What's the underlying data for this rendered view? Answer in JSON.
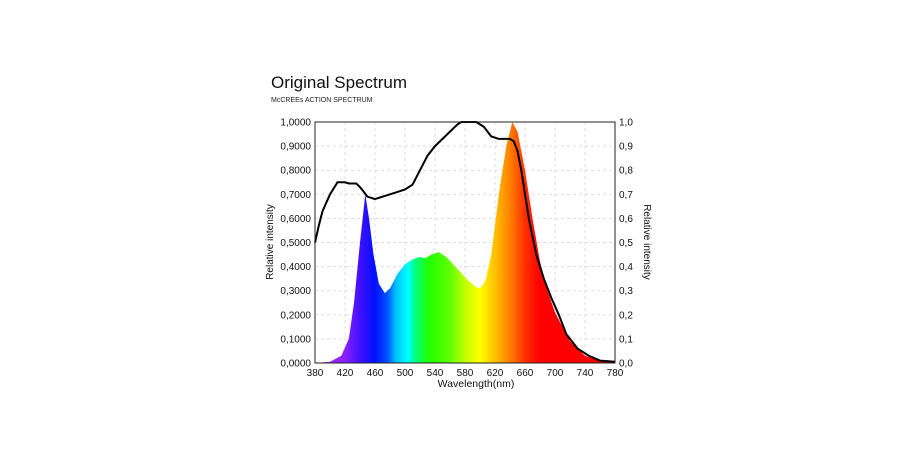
{
  "title": "Original Spectrum",
  "subtitle": "McCREEs ACTION SPECTRUM",
  "chart_data": {
    "type": "area",
    "title": "Original Spectrum",
    "subtitle": "McCREEs ACTION SPECTRUM",
    "xlabel": "Wavelength(nm)",
    "ylabel": "Relative intensity",
    "ylabel_right": "Relative intensity",
    "xlim": [
      380,
      780
    ],
    "ylim": [
      0,
      1
    ],
    "xticks": [
      "380",
      "420",
      "460",
      "500",
      "540",
      "580",
      "620",
      "660",
      "700",
      "740",
      "780"
    ],
    "yticks_left": [
      "0,0000",
      "0,1000",
      "0,2000",
      "0,3000",
      "0,4000",
      "0,5000",
      "0,6000",
      "0,7000",
      "0,8000",
      "0,9000",
      "1,0000"
    ],
    "yticks_right": [
      "0,0",
      "0,1",
      "0,2",
      "0,3",
      "0,4",
      "0,5",
      "0,6",
      "0,7",
      "0,8",
      "0,9",
      "1,0"
    ],
    "grid": true,
    "series": [
      {
        "name": "Spectrum",
        "style": "wavelength-colored fill",
        "x": [
          380,
          400,
          415,
          425,
          432,
          440,
          447,
          452,
          458,
          465,
          473,
          480,
          490,
          500,
          510,
          520,
          527,
          535,
          545,
          555,
          570,
          585,
          595,
          600,
          607,
          615,
          625,
          635,
          643,
          650,
          660,
          670,
          680,
          690,
          700,
          720,
          740,
          760,
          780
        ],
        "y": [
          0,
          0.005,
          0.03,
          0.1,
          0.25,
          0.5,
          0.7,
          0.6,
          0.45,
          0.33,
          0.29,
          0.31,
          0.37,
          0.41,
          0.43,
          0.44,
          0.435,
          0.45,
          0.46,
          0.44,
          0.39,
          0.34,
          0.315,
          0.31,
          0.34,
          0.45,
          0.7,
          0.9,
          1.0,
          0.96,
          0.8,
          0.6,
          0.42,
          0.3,
          0.21,
          0.09,
          0.03,
          0.01,
          0
        ]
      },
      {
        "name": "McCree action spectrum",
        "style": "black line",
        "x": [
          380,
          385,
          390,
          400,
          410,
          420,
          425,
          435,
          440,
          445,
          450,
          460,
          470,
          480,
          490,
          500,
          510,
          520,
          530,
          540,
          550,
          560,
          570,
          575,
          595,
          600,
          605,
          615,
          625,
          640,
          645,
          650,
          655,
          665,
          675,
          685,
          695,
          705,
          715,
          730,
          745,
          760,
          780
        ],
        "y": [
          0.5,
          0.57,
          0.63,
          0.7,
          0.75,
          0.75,
          0.745,
          0.745,
          0.73,
          0.71,
          0.69,
          0.68,
          0.69,
          0.7,
          0.71,
          0.72,
          0.74,
          0.8,
          0.86,
          0.9,
          0.93,
          0.96,
          0.99,
          1.0,
          1.0,
          0.99,
          0.98,
          0.94,
          0.93,
          0.93,
          0.92,
          0.88,
          0.8,
          0.6,
          0.45,
          0.35,
          0.27,
          0.2,
          0.12,
          0.06,
          0.03,
          0.01,
          0.005
        ]
      }
    ]
  }
}
